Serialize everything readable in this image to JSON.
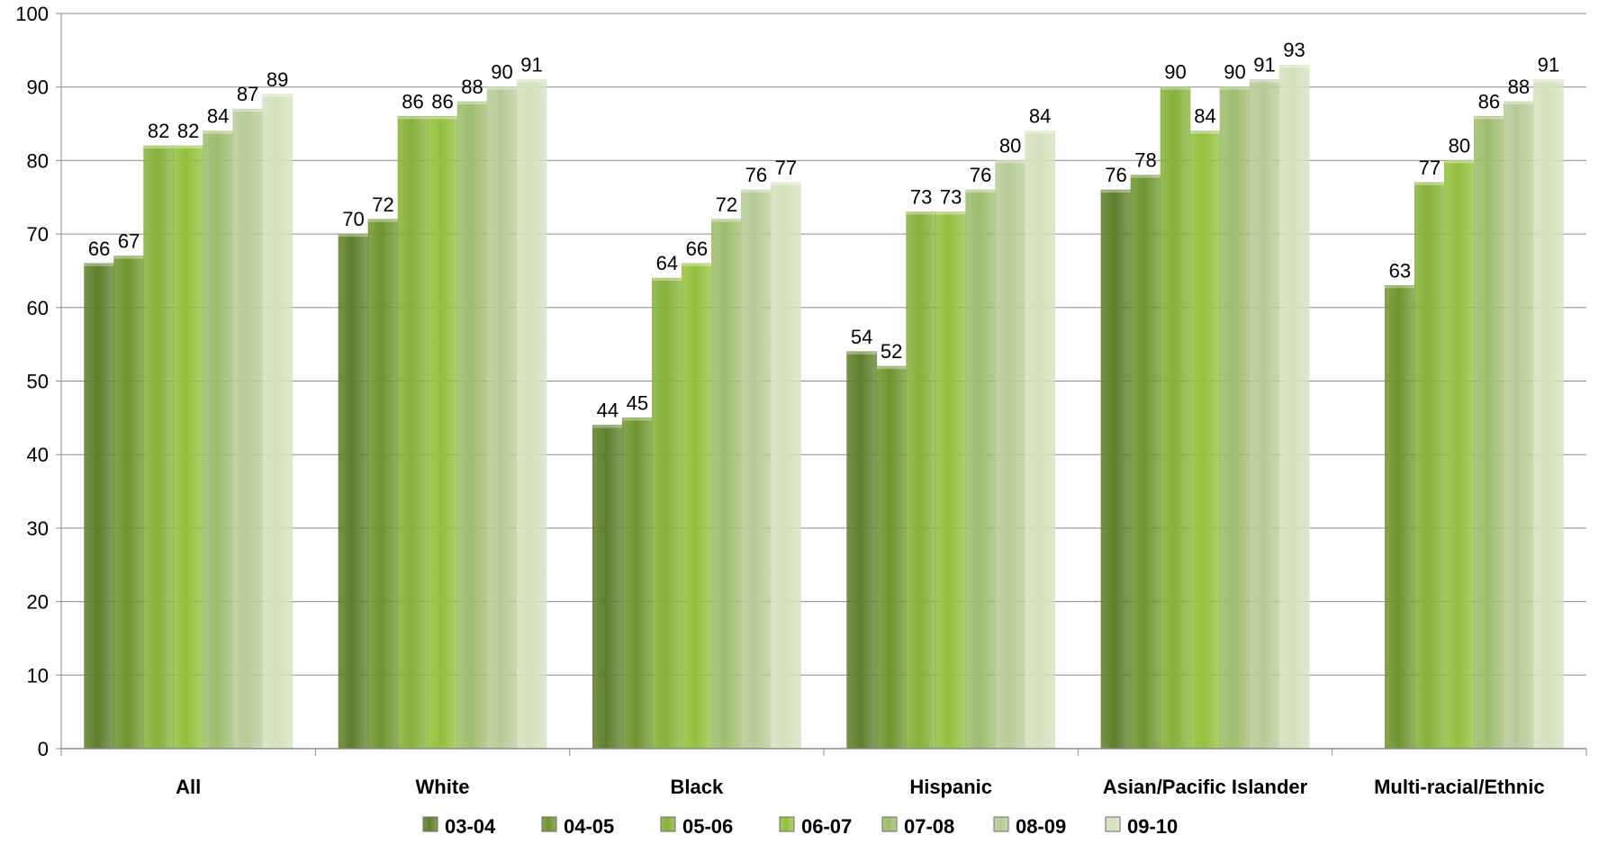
{
  "chart_data": {
    "type": "bar",
    "title": "",
    "xlabel": "",
    "ylabel": "",
    "ylim": [
      0,
      100
    ],
    "yticks": [
      0,
      10,
      20,
      30,
      40,
      50,
      60,
      70,
      80,
      90,
      100
    ],
    "grid": true,
    "legend_position": "bottom",
    "categories": [
      "All",
      "White",
      "Black",
      "Hispanic",
      "Asian/Pacific Islander",
      "Multi-racial/Ethnic"
    ],
    "series": [
      {
        "name": "03-04",
        "color": "#5f7f2c",
        "values": [
          66,
          70,
          44,
          54,
          76,
          null
        ]
      },
      {
        "name": "04-05",
        "color": "#6f9530",
        "values": [
          67,
          72,
          45,
          52,
          78,
          63
        ]
      },
      {
        "name": "05-06",
        "color": "#86b13a",
        "values": [
          82,
          86,
          64,
          73,
          90,
          77
        ]
      },
      {
        "name": "06-07",
        "color": "#93c03e",
        "values": [
          82,
          86,
          66,
          73,
          84,
          80
        ]
      },
      {
        "name": "07-08",
        "color": "#9ebd6e",
        "values": [
          84,
          88,
          72,
          76,
          90,
          86
        ]
      },
      {
        "name": "08-09",
        "color": "#b6cc97",
        "values": [
          87,
          90,
          76,
          80,
          91,
          88
        ]
      },
      {
        "name": "09-10",
        "color": "#d3e2bd",
        "values": [
          89,
          91,
          77,
          84,
          93,
          91
        ]
      }
    ]
  }
}
